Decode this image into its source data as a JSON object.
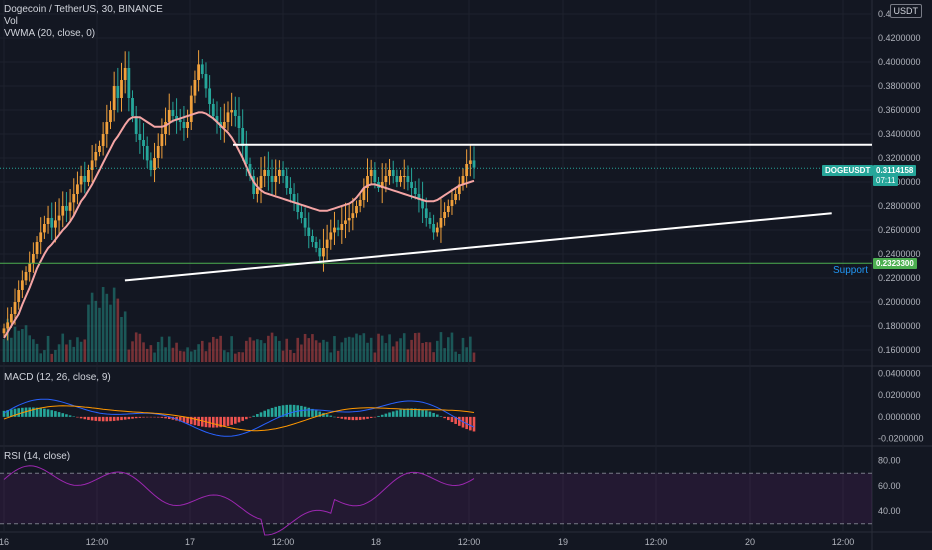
{
  "header": {
    "symbol": "Dogecoin / TetherUS, 30, BINANCE",
    "vol": "Vol",
    "vwma": "VWMA (20, close, 0)",
    "currency": "USDT"
  },
  "price_tags": {
    "symbol": "DOGEUSDT",
    "price": "0.3114158",
    "countdown": "07:11",
    "support_price": "0.2323300",
    "support_label": "Support"
  },
  "panes": {
    "macd_label": "MACD (12, 26, close, 9)",
    "rsi_label": "RSI (14, close)"
  },
  "colors": {
    "background": "#131722",
    "up": "#26a69a",
    "down": "#ef5350",
    "candle_up": "#f0a03c",
    "candle_down": "#26a69a",
    "vwma": "#f4a4a4",
    "support": "#4caf50",
    "macd": "#2962ff",
    "signal": "#ff9800",
    "rsi": "#9c27b0"
  },
  "chart_data": [
    {
      "type": "candlestick",
      "pane": "price",
      "title": "Dogecoin / TetherUS, 30, BINANCE",
      "y_ticks": [
        "0.4400000",
        "0.4200000",
        "0.4000000",
        "0.3800000",
        "0.3600000",
        "0.3400000",
        "0.3200000",
        "0.3000000",
        "0.2800000",
        "0.2600000",
        "0.2400000",
        "0.2200000",
        "0.2000000",
        "0.1800000",
        "0.1600000"
      ],
      "x_ticks": [
        "16",
        "12:00",
        "17",
        "12:00",
        "18",
        "12:00",
        "19",
        "12:00",
        "20",
        "12:00"
      ],
      "ylim": [
        0.15,
        0.445
      ],
      "support": 0.23233,
      "resistance": 0.331,
      "trendline": [
        [
          0.65,
          0.218
        ],
        [
          4.45,
          0.274
        ]
      ],
      "last_price": 0.3114158,
      "series_close": [
        0.178,
        0.183,
        0.19,
        0.2,
        0.21,
        0.218,
        0.225,
        0.232,
        0.24,
        0.25,
        0.258,
        0.265,
        0.27,
        0.262,
        0.268,
        0.272,
        0.28,
        0.276,
        0.283,
        0.29,
        0.298,
        0.305,
        0.3,
        0.31,
        0.318,
        0.325,
        0.33,
        0.34,
        0.35,
        0.36,
        0.38,
        0.37,
        0.385,
        0.395,
        0.37,
        0.355,
        0.34,
        0.335,
        0.33,
        0.318,
        0.31,
        0.32,
        0.33,
        0.34,
        0.35,
        0.36,
        0.355,
        0.352,
        0.35,
        0.345,
        0.35,
        0.372,
        0.385,
        0.398,
        0.39,
        0.378,
        0.365,
        0.355,
        0.35,
        0.345,
        0.35,
        0.358,
        0.36,
        0.355,
        0.345,
        0.33,
        0.315,
        0.305,
        0.29,
        0.295,
        0.305,
        0.31,
        0.305,
        0.3,
        0.305,
        0.31,
        0.305,
        0.295,
        0.29,
        0.283,
        0.275,
        0.27,
        0.262,
        0.255,
        0.25,
        0.245,
        0.238,
        0.245,
        0.252,
        0.258,
        0.262,
        0.26,
        0.265,
        0.268,
        0.27,
        0.274,
        0.28,
        0.285,
        0.295,
        0.305,
        0.31,
        0.3,
        0.295,
        0.3,
        0.305,
        0.31,
        0.305,
        0.3,
        0.305,
        0.305,
        0.3,
        0.295,
        0.29,
        0.285,
        0.278,
        0.27,
        0.265,
        0.258,
        0.262,
        0.27,
        0.275,
        0.28,
        0.285,
        0.29,
        0.298,
        0.305,
        0.315,
        0.318,
        0.312
      ],
      "series_vwma": [
        0.17,
        0.175,
        0.18,
        0.185,
        0.19,
        0.198,
        0.205,
        0.212,
        0.22,
        0.228,
        0.234,
        0.24,
        0.245,
        0.248,
        0.252,
        0.256,
        0.26,
        0.263,
        0.267,
        0.272,
        0.278,
        0.284,
        0.288,
        0.293,
        0.298,
        0.304,
        0.31,
        0.316,
        0.322,
        0.328,
        0.334,
        0.338,
        0.343,
        0.348,
        0.352,
        0.354,
        0.354,
        0.354,
        0.352,
        0.35,
        0.348,
        0.346,
        0.346,
        0.346,
        0.347,
        0.349,
        0.351,
        0.352,
        0.353,
        0.354,
        0.355,
        0.356,
        0.357,
        0.358,
        0.358,
        0.357,
        0.355,
        0.353,
        0.35,
        0.347,
        0.344,
        0.341,
        0.337,
        0.332,
        0.326,
        0.32,
        0.313,
        0.306,
        0.3,
        0.296,
        0.293,
        0.291,
        0.29,
        0.289,
        0.288,
        0.287,
        0.286,
        0.285,
        0.284,
        0.283,
        0.282,
        0.281,
        0.28,
        0.279,
        0.278,
        0.277,
        0.276,
        0.276,
        0.276,
        0.277,
        0.278,
        0.279,
        0.28,
        0.281,
        0.282,
        0.284,
        0.287,
        0.291,
        0.295,
        0.297,
        0.298,
        0.298,
        0.297,
        0.296,
        0.295,
        0.294,
        0.293,
        0.292,
        0.291,
        0.29,
        0.289,
        0.288,
        0.287,
        0.286,
        0.285,
        0.284,
        0.284,
        0.284,
        0.285,
        0.287,
        0.289,
        0.291,
        0.293,
        0.295,
        0.297,
        0.298,
        0.299,
        0.3,
        0.301
      ]
    },
    {
      "type": "bar",
      "pane": "macd",
      "title": "MACD (12, 26, close, 9)",
      "y_ticks": [
        "0.0400000",
        "0.0200000",
        "0.0000000",
        "-0.0200000"
      ],
      "ylim": [
        -0.025,
        0.045
      ]
    },
    {
      "type": "line",
      "pane": "rsi",
      "title": "RSI (14, close)",
      "y_ticks": [
        "80.00",
        "60.00",
        "40.00"
      ],
      "ylim": [
        25,
        90
      ],
      "bands": [
        70,
        30
      ]
    }
  ]
}
